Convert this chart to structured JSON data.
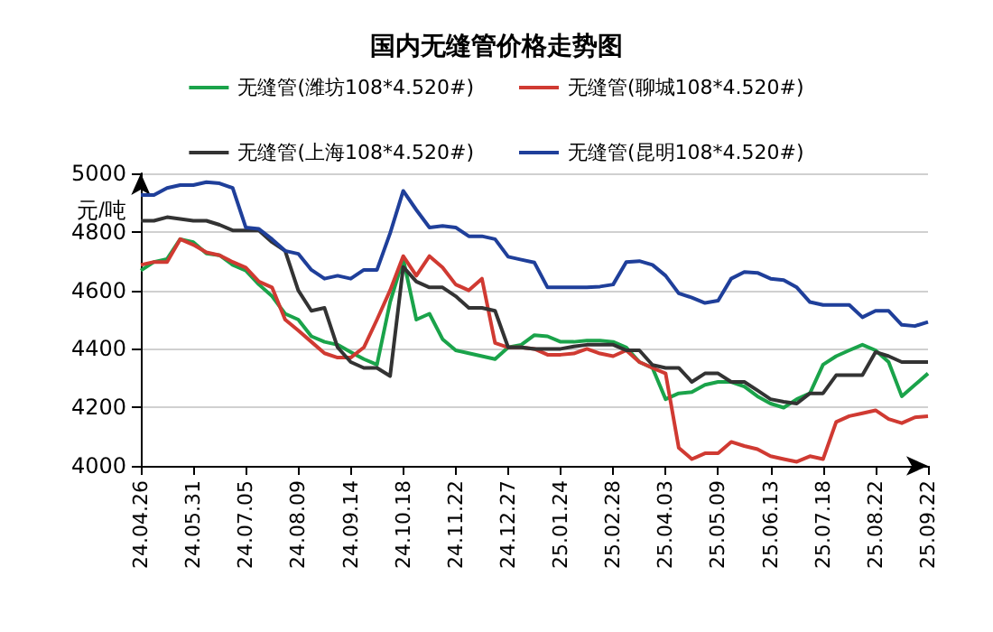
{
  "chart_data": {
    "type": "line",
    "title": "国内无缝管价格走势图",
    "ylabel": "元/吨",
    "categories": [
      "24.04.26",
      null,
      null,
      null,
      "24.05.31",
      null,
      null,
      null,
      "24.07.05",
      null,
      null,
      null,
      "24.08.09",
      null,
      null,
      null,
      "24.09.14",
      null,
      null,
      null,
      "24.10.18",
      null,
      null,
      null,
      "24.11.22",
      null,
      null,
      null,
      "24.12.27",
      null,
      null,
      null,
      "25.01.24",
      null,
      null,
      null,
      "25.02.28",
      null,
      null,
      null,
      "25.04.03",
      null,
      null,
      null,
      "25.05.09",
      null,
      null,
      null,
      "25.06.13",
      null,
      null,
      null,
      "25.07.18",
      null,
      null,
      null,
      "25.08.22",
      null,
      null,
      null,
      "25.09.22"
    ],
    "series": [
      {
        "name": "无缝管(潍坊108*4.520#)",
        "color": "#1aa34a",
        "values": [
          4668,
          4697,
          4707,
          4775,
          4765,
          4726,
          4720,
          4687,
          4668,
          4620,
          4580,
          4520,
          4500,
          4443,
          4424,
          4414,
          4389,
          4365,
          4346,
          4560,
          4707,
          4500,
          4520,
          4433,
          4395,
          4385,
          4375,
          4365,
          4405,
          4414,
          4447,
          4443,
          4424,
          4424,
          4428,
          4428,
          4424,
          4405,
          4355,
          4335,
          4228,
          4248,
          4252,
          4277,
          4287,
          4287,
          4271,
          4238,
          4213,
          4199,
          4228,
          4248,
          4346,
          4375,
          4395,
          4414,
          4395,
          4355,
          4238,
          4277,
          4316
        ]
      },
      {
        "name": "无缝管(聊城108*4.520#)",
        "color": "#d03a32",
        "values": [
          4687,
          4697,
          4697,
          4775,
          4756,
          4730,
          4720,
          4697,
          4678,
          4630,
          4610,
          4500,
          4463,
          4424,
          4385,
          4370,
          4370,
          4405,
          4500,
          4600,
          4717,
          4650,
          4717,
          4678,
          4620,
          4600,
          4640,
          4420,
          4405,
          4405,
          4400,
          4380,
          4380,
          4384,
          4400,
          4384,
          4375,
          4395,
          4355,
          4335,
          4316,
          4062,
          4023,
          4043,
          4043,
          4082,
          4068,
          4057,
          4033,
          4023,
          4014,
          4033,
          4023,
          4150,
          4170,
          4180,
          4190,
          4160,
          4146,
          4166,
          4170
        ]
      },
      {
        "name": "无缝管(上海108*4.520#)",
        "color": "#333333",
        "values": [
          4838,
          4838,
          4850,
          4844,
          4838,
          4838,
          4824,
          4805,
          4805,
          4805,
          4765,
          4735,
          4600,
          4530,
          4540,
          4405,
          4355,
          4335,
          4335,
          4307,
          4680,
          4630,
          4610,
          4610,
          4580,
          4540,
          4540,
          4530,
          4405,
          4405,
          4400,
          4400,
          4400,
          4408,
          4414,
          4414,
          4414,
          4395,
          4395,
          4345,
          4335,
          4335,
          4287,
          4316,
          4316,
          4287,
          4287,
          4258,
          4228,
          4219,
          4213,
          4248,
          4248,
          4310,
          4310,
          4310,
          4389,
          4375,
          4355,
          4355,
          4355
        ]
      },
      {
        "name": "无缝管(昆明108*4.520#)",
        "color": "#1f3f9a",
        "values": [
          4926,
          4926,
          4950,
          4960,
          4960,
          4970,
          4966,
          4950,
          4815,
          4810,
          4775,
          4735,
          4725,
          4670,
          4640,
          4650,
          4640,
          4670,
          4670,
          4795,
          4940,
          4875,
          4815,
          4820,
          4815,
          4785,
          4785,
          4775,
          4715,
          4705,
          4695,
          4610,
          4610,
          4610,
          4610,
          4613,
          4620,
          4697,
          4700,
          4687,
          4650,
          4590,
          4575,
          4557,
          4565,
          4640,
          4663,
          4660,
          4640,
          4635,
          4610,
          4560,
          4550,
          4550,
          4550,
          4508,
          4530,
          4530,
          4482,
          4478,
          4492
        ]
      }
    ],
    "ylim": [
      4000,
      5000
    ],
    "yticks": [
      4000,
      4200,
      4400,
      4600,
      4800,
      5000
    ],
    "grid": "y",
    "legend": "top",
    "marker": "none",
    "line_style": "solid"
  }
}
